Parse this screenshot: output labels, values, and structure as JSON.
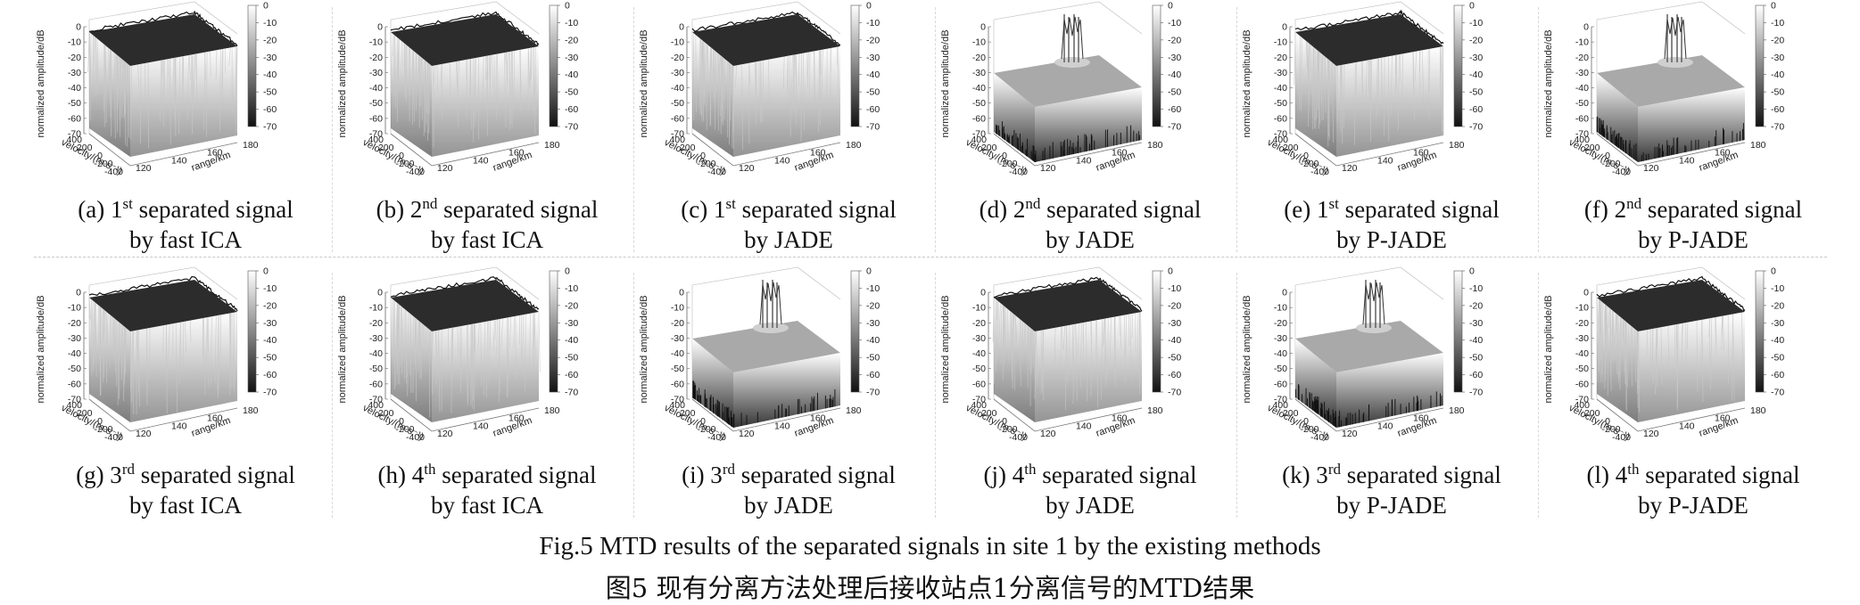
{
  "figure": {
    "caption_en": "Fig.5 MTD results of the separated signals in site 1 by the existing methods",
    "caption_zh": "图5 现有分离方法处理后接收站点1分离信号的MTD结果"
  },
  "axes": {
    "z_label": "normalized amplitude/dB",
    "x_label": "velocity/(m·s⁻¹)",
    "y_label": "range/km",
    "z_ticks": [
      "0",
      "-10",
      "-20",
      "-30",
      "-40",
      "-50",
      "-60",
      "-70"
    ],
    "velocity_ticks": [
      "400",
      "200",
      "0",
      "-200",
      "-400"
    ],
    "range_ticks": [
      "120",
      "140",
      "160",
      "180"
    ],
    "colorbar_ticks": [
      "0",
      "-10",
      "-20",
      "-30",
      "-40",
      "-50",
      "-60",
      "-70"
    ]
  },
  "chart_data": [
    {
      "type": "surface",
      "id": "a",
      "prefix": "(a) 1",
      "sup": "st",
      "suffix": " separated signal",
      "line2": "by fast ICA",
      "target_peak": false
    },
    {
      "type": "surface",
      "id": "b",
      "prefix": "(b) 2",
      "sup": "nd",
      "suffix": " separated signal",
      "line2": "by fast ICA",
      "target_peak": false
    },
    {
      "type": "surface",
      "id": "c",
      "prefix": "(c) 1",
      "sup": "st",
      "suffix": " separated signal",
      "line2": "by JADE",
      "target_peak": false
    },
    {
      "type": "surface",
      "id": "d",
      "prefix": "(d) 2",
      "sup": "nd",
      "suffix": " separated signal",
      "line2": "by JADE",
      "target_peak": true
    },
    {
      "type": "surface",
      "id": "e",
      "prefix": "(e) 1",
      "sup": "st",
      "suffix": " separated signal",
      "line2": "by P-JADE",
      "target_peak": false
    },
    {
      "type": "surface",
      "id": "f",
      "prefix": "(f) 2",
      "sup": "nd",
      "suffix": " separated signal",
      "line2": "by P-JADE",
      "target_peak": true
    },
    {
      "type": "surface",
      "id": "g",
      "prefix": "(g) 3",
      "sup": "rd",
      "suffix": " separated signal",
      "line2": "by fast ICA",
      "target_peak": false
    },
    {
      "type": "surface",
      "id": "h",
      "prefix": "(h) 4",
      "sup": "th",
      "suffix": " separated signal",
      "line2": "by fast ICA",
      "target_peak": false
    },
    {
      "type": "surface",
      "id": "i",
      "prefix": "(i) 3",
      "sup": "rd",
      "suffix": " separated signal",
      "line2": "by JADE",
      "target_peak": true
    },
    {
      "type": "surface",
      "id": "j",
      "prefix": "(j) 4",
      "sup": "th",
      "suffix": " separated signal",
      "line2": "by JADE",
      "target_peak": false
    },
    {
      "type": "surface",
      "id": "k",
      "prefix": "(k) 3",
      "sup": "rd",
      "suffix": " separated signal",
      "line2": "by P-JADE",
      "target_peak": true
    },
    {
      "type": "surface",
      "id": "l",
      "prefix": "(l) 4",
      "sup": "th",
      "suffix": " separated signal",
      "line2": "by P-JADE",
      "target_peak": false
    }
  ]
}
